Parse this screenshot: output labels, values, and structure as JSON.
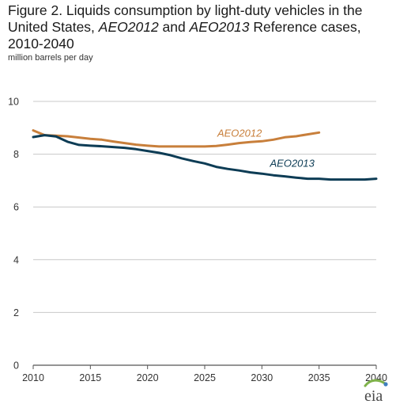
{
  "title": {
    "part1": "Figure 2. Liquids consumption by light-duty vehicles in the United States, ",
    "em1": "AEO2012",
    "part2": " and ",
    "em2": "AEO2013",
    "part3": " Reference cases, 2010-2040"
  },
  "units": "million barrels per day",
  "logo": {
    "text": "eia"
  },
  "colors": {
    "aeo2012": "#c87f3b",
    "aeo2013": "#0d3c55",
    "grid": "#c8c8c8",
    "axis": "#555555"
  },
  "chart_data": {
    "type": "line",
    "xlabel": "",
    "ylabel": "million barrels per day",
    "xlim": [
      2010,
      2040
    ],
    "ylim": [
      0,
      10
    ],
    "xticks": [
      2010,
      2015,
      2020,
      2025,
      2030,
      2035,
      2040
    ],
    "yticks": [
      0,
      2,
      4,
      6,
      8,
      10
    ],
    "grid": "horizontal",
    "series": [
      {
        "name": "AEO2012",
        "x": [
          2010,
          2011,
          2012,
          2013,
          2014,
          2015,
          2016,
          2017,
          2018,
          2019,
          2020,
          2021,
          2022,
          2023,
          2024,
          2025,
          2026,
          2027,
          2028,
          2029,
          2030,
          2031,
          2032,
          2033,
          2034,
          2035
        ],
        "values": [
          8.9,
          8.72,
          8.7,
          8.68,
          8.63,
          8.58,
          8.55,
          8.48,
          8.42,
          8.36,
          8.32,
          8.29,
          8.29,
          8.29,
          8.29,
          8.29,
          8.31,
          8.36,
          8.42,
          8.46,
          8.49,
          8.55,
          8.64,
          8.68,
          8.75,
          8.82
        ]
      },
      {
        "name": "AEO2013",
        "x": [
          2010,
          2011,
          2012,
          2013,
          2014,
          2015,
          2016,
          2017,
          2018,
          2019,
          2020,
          2021,
          2022,
          2023,
          2024,
          2025,
          2026,
          2027,
          2028,
          2029,
          2030,
          2031,
          2032,
          2033,
          2034,
          2035,
          2036,
          2037,
          2038,
          2039,
          2040
        ],
        "values": [
          8.65,
          8.72,
          8.67,
          8.47,
          8.35,
          8.32,
          8.3,
          8.27,
          8.24,
          8.19,
          8.12,
          8.05,
          7.96,
          7.84,
          7.74,
          7.65,
          7.52,
          7.44,
          7.38,
          7.31,
          7.26,
          7.2,
          7.16,
          7.11,
          7.07,
          7.07,
          7.04,
          7.04,
          7.04,
          7.04,
          7.07
        ]
      }
    ]
  }
}
